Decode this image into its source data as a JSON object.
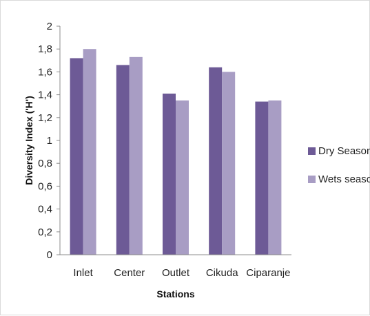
{
  "chart_data": {
    "type": "bar",
    "title": "",
    "xlabel": "Stations",
    "ylabel": "Diversity Index ('H')",
    "categories": [
      "Inlet",
      "Center",
      "Outlet",
      "Cikuda",
      "Ciparanje"
    ],
    "series": [
      {
        "name": "Dry Season",
        "values": [
          1.72,
          1.66,
          1.41,
          1.64,
          1.34
        ],
        "color": "#6d5a96"
      },
      {
        "name": "Wets season",
        "values": [
          1.8,
          1.73,
          1.35,
          1.6,
          1.35
        ],
        "color": "#a89dc4"
      }
    ],
    "ylim": [
      0,
      2
    ],
    "yticks": [
      "0",
      "0,2",
      "0,4",
      "0,6",
      "0,8",
      "1",
      "1,2",
      "1,4",
      "1,6",
      "1,8",
      "2"
    ],
    "grid": false,
    "legend_position": "right"
  }
}
